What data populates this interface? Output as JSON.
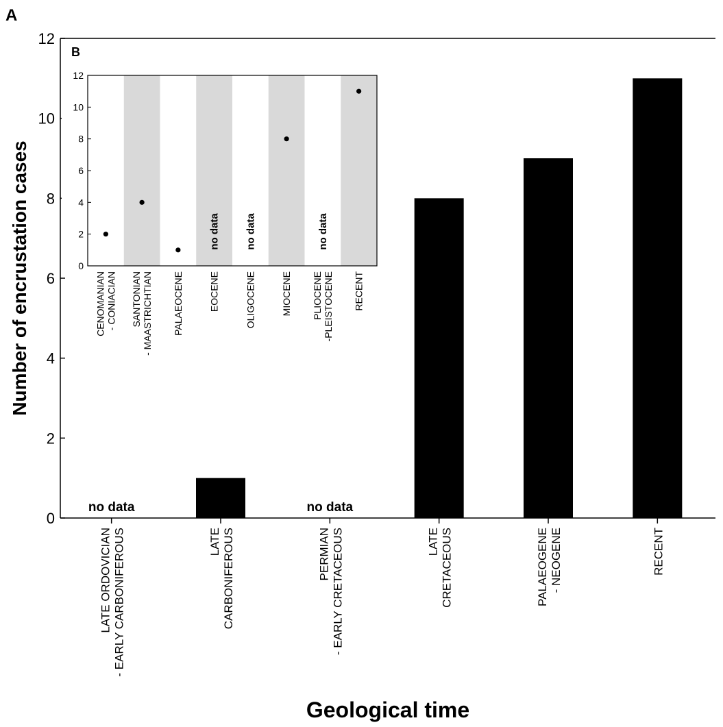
{
  "chart_data": [
    {
      "panel": "A",
      "type": "bar",
      "xlabel": "Geological time",
      "ylabel": "Number of encrustation cases",
      "ylim": [
        0,
        12
      ],
      "yticks": [
        "0",
        "2",
        "4",
        "6",
        "8",
        "10",
        "12"
      ],
      "categories": [
        [
          "LATE ORDOVICIAN",
          "- EARLY CARBONIFEROUS"
        ],
        [
          "LATE",
          "CARBONIFEROUS"
        ],
        [
          "PERMIAN",
          "- EARLY CRETACEOUS"
        ],
        [
          "LATE",
          "CRETACEOUS"
        ],
        [
          "PALAEOGENE",
          "- NEOGENE"
        ],
        [
          "RECENT"
        ]
      ],
      "values": [
        null,
        1,
        null,
        8,
        9,
        11
      ],
      "no_data_label": "no data",
      "colors": {
        "bar": "#000000"
      }
    },
    {
      "panel": "B",
      "type": "scatter",
      "ylim": [
        0,
        12
      ],
      "yticks": [
        "0",
        "2",
        "4",
        "6",
        "8",
        "10",
        "12"
      ],
      "categories": [
        [
          "CENOMANIAN",
          "- CONIACIAN"
        ],
        [
          "SANTONIAN",
          "- MAASTRICHTIAN"
        ],
        [
          "PALAEOCENE"
        ],
        [
          "EOCENE"
        ],
        [
          "OLIGOCENE"
        ],
        [
          "MIOCENE"
        ],
        [
          "PLIOCENE",
          "-PLEISTOCENE"
        ],
        [
          "RECENT"
        ]
      ],
      "values": [
        2,
        4,
        1,
        null,
        null,
        8,
        null,
        11
      ],
      "no_data_label": "no data",
      "shaded_bands": [
        false,
        true,
        false,
        true,
        false,
        true,
        false,
        true
      ],
      "colors": {
        "band": "#d9d9d9",
        "point": "#000000"
      }
    }
  ]
}
